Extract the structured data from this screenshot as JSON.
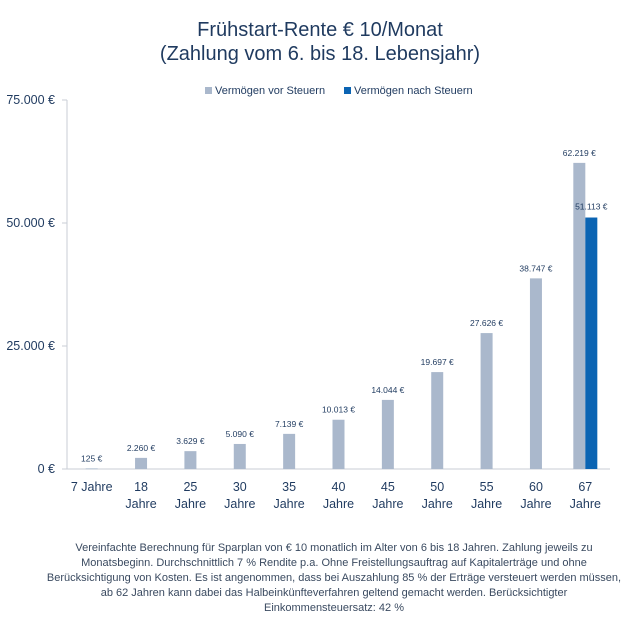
{
  "chart_data": {
    "type": "bar",
    "title_line1": "Frühstart-Rente € 10/Monat",
    "title_line2": "(Zahlung vom 6. bis 18. Lebensjahr)",
    "categories": [
      [
        "7 Jahre"
      ],
      [
        "18",
        "Jahre"
      ],
      [
        "25",
        "Jahre"
      ],
      [
        "30",
        "Jahre"
      ],
      [
        "35",
        "Jahre"
      ],
      [
        "40",
        "Jahre"
      ],
      [
        "45",
        "Jahre"
      ],
      [
        "50",
        "Jahre"
      ],
      [
        "55",
        "Jahre"
      ],
      [
        "60",
        "Jahre"
      ],
      [
        "67",
        "Jahre"
      ]
    ],
    "series": [
      {
        "name": "Vermögen vor Steuern",
        "color": "#aab8cc",
        "values": [
          125,
          2260,
          3629,
          5090,
          7139,
          10013,
          14044,
          19697,
          27626,
          38747,
          62219
        ],
        "labels": [
          "125 €",
          "2.260 €",
          "3.629 €",
          "5.090 €",
          "7.139 €",
          "10.013 €",
          "14.044 €",
          "19.697 €",
          "27.626 €",
          "38.747 €",
          "62.219 €"
        ]
      },
      {
        "name": "Vermögen nach Steuern",
        "color": "#0b64b3",
        "values": [
          null,
          null,
          null,
          null,
          null,
          null,
          null,
          null,
          null,
          null,
          51113
        ],
        "labels": [
          "",
          "",
          "",
          "",
          "",
          "",
          "",
          "",
          "",
          "",
          "51.113 €"
        ]
      }
    ],
    "yticks": [
      0,
      25000,
      50000,
      75000
    ],
    "ytick_labels": [
      "0 €",
      "25.000 €",
      "50.000 €",
      "75.000 €"
    ],
    "ylim": [
      0,
      75000
    ],
    "legend_position": "top-center",
    "grid": false
  },
  "footnote": "Vereinfachte Berechnung für Sparplan von € 10 monatlich im Alter von 6 bis 18 Jahren. Zahlung jeweils zu Monatsbeginn. Durchschnittlich 7 % Rendite p.a. Ohne Freistellungsauftrag auf Kapitalerträge und ohne Berücksichtigung von Kosten. Es ist angenommen, dass bei Auszahlung 85 % der Erträge versteuert werden müssen, ab 62 Jahren kann dabei das Halbeinkünfteverfahren geltend gemacht werden. Berücksichtigter Einkommensteuersatz: 42 %"
}
